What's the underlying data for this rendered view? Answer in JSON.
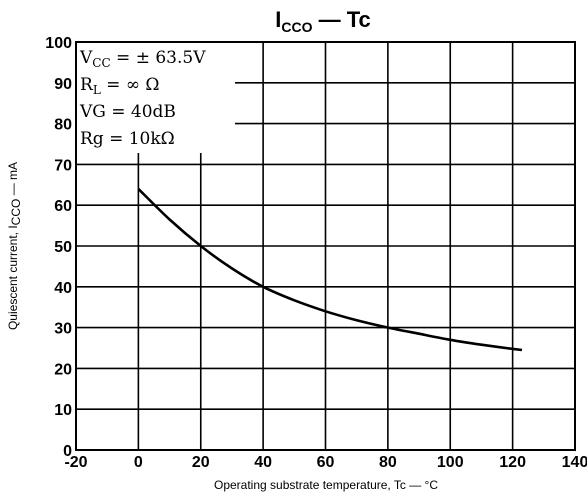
{
  "chart_data": {
    "type": "line",
    "title_main": "I",
    "title_sub": "CCO",
    "title_rest": " — Tc",
    "xlabel": "Operating substrate temperature, Tc — °C",
    "ylabel": "Quiescent current, I",
    "ylabel_sub": "CCO",
    "ylabel_rest": " — mA",
    "xlim": [
      -20,
      140
    ],
    "ylim": [
      0,
      100
    ],
    "x_ticks": [
      -20,
      0,
      20,
      40,
      60,
      80,
      100,
      120,
      140
    ],
    "y_ticks": [
      0,
      10,
      20,
      30,
      40,
      50,
      60,
      70,
      80,
      90,
      100
    ],
    "x_tick_labels": [
      "-20",
      "0",
      "20",
      "40",
      "60",
      "80",
      "100",
      "120",
      "140"
    ],
    "y_tick_labels": [
      "0",
      "10",
      "20",
      "30",
      "40",
      "50",
      "60",
      "70",
      "80",
      "90",
      "100"
    ],
    "grid": true,
    "conditions": [
      {
        "main": "V",
        "sub": "CC",
        "rest": " = ± 63.5V"
      },
      {
        "main": "R",
        "sub": "L",
        "rest": " = ∞ Ω"
      },
      {
        "main": "VG = 40dB",
        "sub": "",
        "rest": ""
      },
      {
        "main": "Rg = 10kΩ",
        "sub": "",
        "rest": ""
      }
    ],
    "series": [
      {
        "x": [
          0,
          10,
          20,
          30,
          40,
          50,
          60,
          70,
          80,
          90,
          100,
          110,
          123
        ],
        "y": [
          64,
          56.5,
          50,
          44.5,
          40,
          36.7,
          34,
          31.8,
          30,
          28.5,
          27,
          25.8,
          24.5
        ]
      }
    ]
  }
}
